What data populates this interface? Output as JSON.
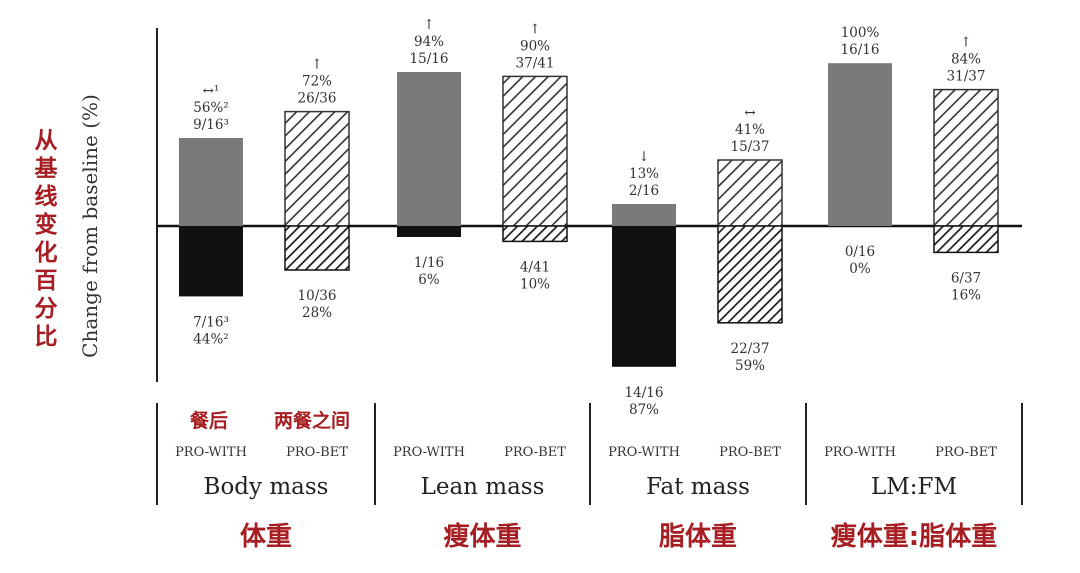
{
  "labels": {
    "ylabel_en": "Change from baseline (%)",
    "ylabel_cn": "从基线变化百分比",
    "condition_cn": [
      "餐后",
      "两餐之间"
    ]
  },
  "colors": {
    "annotation_red": "#a61e22",
    "pro_with_positive": "#7a7a7a",
    "pro_with_negative": "#111111",
    "hatch_stroke": "#333333",
    "axis": "#222222"
  },
  "chart_data": {
    "type": "bar",
    "ylabel": "Change from baseline (%)",
    "series_labels": [
      "PRO-WITH",
      "PRO-BET"
    ],
    "groups": [
      {
        "name": "Body mass",
        "name_cn": "体重",
        "bars": [
          {
            "series": "PRO-WITH",
            "positive": {
              "value": 2.0,
              "label": [
                "↔¹",
                "56%²",
                "9/16³"
              ]
            },
            "negative": {
              "value": -1.6,
              "label": [
                "7/16³",
                "44%²"
              ]
            }
          },
          {
            "series": "PRO-BET",
            "positive": {
              "value": 2.6,
              "label": [
                "↑",
                "72%",
                "26/36"
              ]
            },
            "negative": {
              "value": -1.0,
              "label": [
                "10/36",
                "28%"
              ]
            }
          }
        ]
      },
      {
        "name": "Lean mass",
        "name_cn": "瘦体重",
        "bars": [
          {
            "series": "PRO-WITH",
            "positive": {
              "value": 3.5,
              "label": [
                "↑",
                "94%",
                "15/16"
              ]
            },
            "negative": {
              "value": -0.25,
              "label": [
                "1/16",
                "6%"
              ]
            }
          },
          {
            "series": "PRO-BET",
            "positive": {
              "value": 3.4,
              "label": [
                "↑",
                "90%",
                "37/41"
              ]
            },
            "negative": {
              "value": -0.35,
              "label": [
                "4/41",
                "10%"
              ]
            }
          }
        ]
      },
      {
        "name": "Fat mass",
        "name_cn": "脂体重",
        "bars": [
          {
            "series": "PRO-WITH",
            "positive": {
              "value": 0.5,
              "label": [
                "↓",
                "13%",
                "2/16"
              ]
            },
            "negative": {
              "value": -3.2,
              "label": [
                "14/16",
                "87%"
              ]
            }
          },
          {
            "series": "PRO-BET",
            "positive": {
              "value": 1.5,
              "label": [
                "↔",
                "41%",
                "15/37"
              ]
            },
            "negative": {
              "value": -2.2,
              "label": [
                "22/37",
                "59%"
              ]
            }
          }
        ]
      },
      {
        "name": "LM:FM",
        "name_cn": "瘦体重:脂体重",
        "bars": [
          {
            "series": "PRO-WITH",
            "positive": {
              "value": 3.7,
              "label": [
                "100%",
                "16/16"
              ]
            },
            "negative": {
              "value": 0,
              "label": [
                "0/16",
                "0%"
              ]
            }
          },
          {
            "series": "PRO-BET",
            "positive": {
              "value": 3.1,
              "label": [
                "↑",
                "84%",
                "31/37"
              ]
            },
            "negative": {
              "value": -0.6,
              "label": [
                "6/37",
                "16%"
              ]
            }
          }
        ]
      }
    ],
    "ylim": [
      -3.3,
      4.0
    ],
    "grid": false,
    "legend": "none"
  }
}
